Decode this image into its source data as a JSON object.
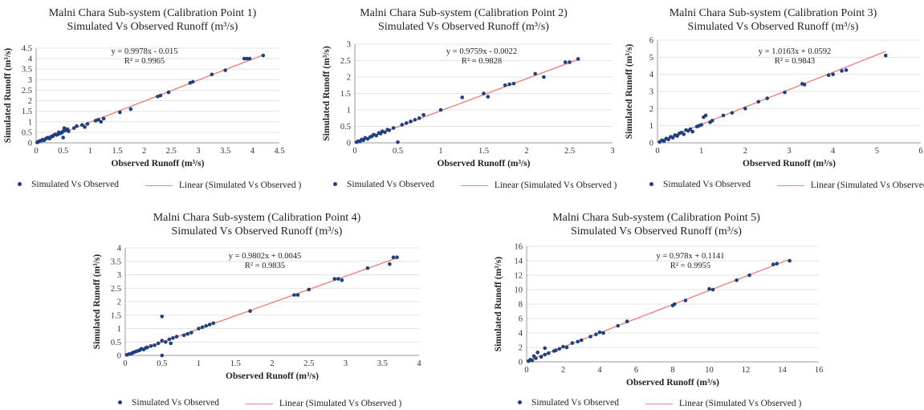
{
  "figure": {
    "legend_simulated": "Simulated Vs Observed",
    "legend_linear": "Linear (Simulated Vs Observed )",
    "colors": {
      "points": "#1f3f7f",
      "trend": "#f08080",
      "grid": "#e3e3e3",
      "axis": "#9a9a9a"
    }
  },
  "chart_data": [
    {
      "type": "scatter",
      "title": "Malni Chara Sub-system (Calibration Point 1)",
      "subtitle": "Simulated Vs Observed Runoff (m³/s)",
      "xlabel": "Observed Runoff (m³/s)",
      "ylabel": "Simulated Runoff (m³/s)",
      "xlim": [
        0,
        4.5
      ],
      "ylim": [
        0,
        4.5
      ],
      "xticks": [
        "0",
        "0.5",
        "1",
        "1.5",
        "2",
        "2.5",
        "3",
        "3.5",
        "4",
        "4.5"
      ],
      "yticks": [
        "0",
        "0.5",
        "1",
        "1.5",
        "2",
        "2.5",
        "3",
        "3.5",
        "4",
        "4.5"
      ],
      "equation": "y = 0.9978x - 0.015",
      "r2": "R² = 0.9965",
      "trend": {
        "slope": 0.9978,
        "intercept": -0.015
      },
      "grid": true,
      "legend": "bottom",
      "x": [
        0.02,
        0.04,
        0.06,
        0.08,
        0.1,
        0.12,
        0.15,
        0.18,
        0.2,
        0.22,
        0.25,
        0.28,
        0.3,
        0.32,
        0.35,
        0.38,
        0.4,
        0.42,
        0.45,
        0.48,
        0.5,
        0.52,
        0.55,
        0.58,
        0.6,
        0.5,
        0.7,
        0.75,
        0.85,
        0.9,
        0.95,
        1.1,
        1.15,
        1.2,
        1.25,
        1.55,
        1.75,
        2.25,
        2.3,
        2.45,
        2.85,
        2.9,
        3.25,
        3.5,
        3.85,
        3.9,
        3.95,
        4.2
      ],
      "y": [
        0.02,
        0.05,
        0.08,
        0.1,
        0.1,
        0.15,
        0.12,
        0.2,
        0.22,
        0.25,
        0.2,
        0.3,
        0.3,
        0.35,
        0.4,
        0.38,
        0.4,
        0.5,
        0.45,
        0.5,
        0.55,
        0.7,
        0.6,
        0.65,
        0.55,
        0.25,
        0.7,
        0.8,
        0.85,
        0.75,
        0.9,
        1.05,
        1.1,
        1.0,
        1.15,
        1.45,
        1.6,
        2.2,
        2.25,
        2.4,
        2.85,
        2.9,
        3.25,
        3.45,
        4.0,
        4.0,
        4.0,
        4.15
      ]
    },
    {
      "type": "scatter",
      "title": "Malni Chara Sub-system (Calibration Point 2)",
      "subtitle": "Simulated Vs Observed Runoff (m³/s)",
      "xlabel": "Observed Runoff (m³/s)",
      "ylabel": "Simulated Runoff (m³/s)",
      "xlim": [
        0,
        3
      ],
      "ylim": [
        0,
        3
      ],
      "xticks": [
        "0",
        "0.5",
        "1",
        "1.5",
        "2",
        "2.5",
        "3"
      ],
      "yticks": [
        "0",
        "0.5",
        "1",
        "1.5",
        "2",
        "2.5",
        "3"
      ],
      "equation": "y = 0.9759x - 0.0022",
      "r2": "R² = 0.9828",
      "trend": {
        "slope": 0.9759,
        "intercept": -0.0022
      },
      "grid": true,
      "legend": "bottom",
      "x": [
        0.02,
        0.04,
        0.06,
        0.08,
        0.1,
        0.12,
        0.15,
        0.18,
        0.2,
        0.22,
        0.25,
        0.28,
        0.3,
        0.32,
        0.35,
        0.38,
        0.4,
        0.45,
        0.5,
        0.55,
        0.6,
        0.65,
        0.7,
        0.75,
        0.8,
        1.0,
        1.25,
        1.5,
        1.55,
        1.75,
        1.8,
        1.85,
        2.1,
        2.2,
        2.45,
        2.5,
        2.6
      ],
      "y": [
        0.02,
        0.05,
        0.04,
        0.1,
        0.08,
        0.15,
        0.12,
        0.18,
        0.2,
        0.25,
        0.22,
        0.3,
        0.28,
        0.35,
        0.32,
        0.4,
        0.38,
        0.45,
        0.02,
        0.55,
        0.6,
        0.65,
        0.7,
        0.75,
        0.85,
        1.0,
        1.38,
        1.5,
        1.4,
        1.75,
        1.78,
        1.8,
        2.1,
        2.0,
        2.45,
        2.45,
        2.55
      ]
    },
    {
      "type": "scatter",
      "title": "Malni Chara Sub-system (Calibration Point 3)",
      "subtitle": "Simulated Vs Observed Runoff (m³/s)",
      "xlabel": "Observed Runoff (m³/s)",
      "ylabel": "Simulated Runoff (m³/s)",
      "xlim": [
        0,
        6
      ],
      "ylim": [
        0,
        6
      ],
      "xticks": [
        "0",
        "1",
        "2",
        "3",
        "4",
        "5",
        "6"
      ],
      "yticks": [
        "0",
        "1",
        "2",
        "3",
        "4",
        "5",
        "6"
      ],
      "equation": "y = 1.0163x + 0.0592",
      "r2": "R² = 0.9843",
      "trend": {
        "slope": 1.0163,
        "intercept": 0.0592
      },
      "grid": true,
      "legend": "bottom",
      "x": [
        0.05,
        0.1,
        0.15,
        0.2,
        0.25,
        0.3,
        0.35,
        0.4,
        0.45,
        0.5,
        0.55,
        0.6,
        0.65,
        0.7,
        0.75,
        0.8,
        0.9,
        0.95,
        1.0,
        1.05,
        1.1,
        1.2,
        1.25,
        1.5,
        1.7,
        2.0,
        2.3,
        2.5,
        2.9,
        3.3,
        3.35,
        3.9,
        4.0,
        4.2,
        4.3,
        5.2
      ],
      "y": [
        0.05,
        0.15,
        0.1,
        0.25,
        0.2,
        0.35,
        0.3,
        0.45,
        0.4,
        0.55,
        0.6,
        0.5,
        0.75,
        0.7,
        0.8,
        0.65,
        0.95,
        1.0,
        1.05,
        1.5,
        1.6,
        1.2,
        1.3,
        1.6,
        1.75,
        2.0,
        2.4,
        2.6,
        2.95,
        3.45,
        3.4,
        3.95,
        4.0,
        4.2,
        4.25,
        5.1
      ]
    },
    {
      "type": "scatter",
      "title": "Malni Chara Sub-system (Calibration Point 4)",
      "subtitle": "Simulated Vs Observed Runoff (m³/s)",
      "xlabel": "Observed Runoff (m³/s)",
      "ylabel": "Simulated Runoff (m³/s)",
      "xlim": [
        0,
        4
      ],
      "ylim": [
        0,
        4
      ],
      "xticks": [
        "0",
        "0.5",
        "1",
        "1.5",
        "2",
        "2.5",
        "3",
        "3.5",
        "4"
      ],
      "yticks": [
        "0",
        "0.5",
        "1",
        "1.5",
        "2",
        "2.5",
        "3",
        "3.5",
        "4"
      ],
      "equation": "y = 0.9802x + 0.0045",
      "r2": "R² = 0.9835",
      "trend": {
        "slope": 0.9802,
        "intercept": 0.0045
      },
      "grid": true,
      "legend": "bottom",
      "x": [
        0.02,
        0.05,
        0.08,
        0.1,
        0.12,
        0.15,
        0.18,
        0.2,
        0.22,
        0.25,
        0.28,
        0.3,
        0.35,
        0.4,
        0.45,
        0.5,
        0.5,
        0.5,
        0.55,
        0.6,
        0.62,
        0.65,
        0.7,
        0.8,
        0.85,
        0.9,
        1.0,
        1.05,
        1.1,
        1.15,
        1.2,
        1.7,
        2.3,
        2.35,
        2.5,
        2.85,
        2.9,
        2.95,
        3.3,
        3.6,
        3.65,
        3.7
      ],
      "y": [
        0.02,
        0.05,
        0.06,
        0.1,
        0.12,
        0.15,
        0.18,
        0.2,
        0.25,
        0.22,
        0.28,
        0.3,
        0.35,
        0.38,
        0.45,
        0.55,
        1.45,
        0.0,
        0.5,
        0.6,
        0.45,
        0.65,
        0.7,
        0.75,
        0.8,
        0.85,
        1.0,
        1.05,
        1.1,
        1.15,
        1.2,
        1.65,
        2.25,
        2.25,
        2.45,
        2.85,
        2.85,
        2.8,
        3.25,
        3.4,
        3.65,
        3.65
      ]
    },
    {
      "type": "scatter",
      "title": "Malni Chara Sub-system (Calibration Point 5)",
      "subtitle": "Simulated Vs Observed Runoff (m³/s)",
      "xlabel": "Observed Runoff (m³/s)",
      "ylabel": "Simulated Runoff (m³/s)",
      "xlim": [
        0,
        16
      ],
      "ylim": [
        0,
        16
      ],
      "xticks": [
        "0",
        "2",
        "4",
        "6",
        "8",
        "10",
        "12",
        "14",
        "16"
      ],
      "yticks": [
        "0",
        "2",
        "4",
        "6",
        "8",
        "10",
        "12",
        "14",
        "16"
      ],
      "equation": "y = 0.978x + 0.1141",
      "r2": "R² = 0.9955",
      "trend": {
        "slope": 0.978,
        "intercept": 0.1141
      },
      "grid": true,
      "legend": "bottom",
      "x": [
        0.1,
        0.2,
        0.3,
        0.4,
        0.5,
        0.6,
        0.8,
        1.0,
        1.0,
        1.2,
        1.5,
        1.6,
        1.8,
        2.0,
        2.2,
        2.5,
        2.8,
        3.0,
        3.5,
        3.8,
        4.0,
        4.2,
        5.0,
        5.5,
        8.0,
        8.1,
        8.7,
        10.0,
        10.2,
        11.5,
        12.2,
        13.5,
        13.7,
        14.4
      ],
      "y": [
        0.1,
        0.3,
        0.2,
        0.8,
        0.5,
        1.3,
        0.7,
        1.0,
        1.9,
        1.2,
        1.5,
        1.6,
        1.8,
        2.1,
        2.0,
        2.6,
        2.8,
        3.0,
        3.5,
        3.8,
        4.1,
        4.0,
        5.0,
        5.6,
        7.8,
        8.0,
        8.5,
        10.1,
        10.0,
        11.3,
        12.0,
        13.5,
        13.6,
        14.0
      ]
    }
  ]
}
